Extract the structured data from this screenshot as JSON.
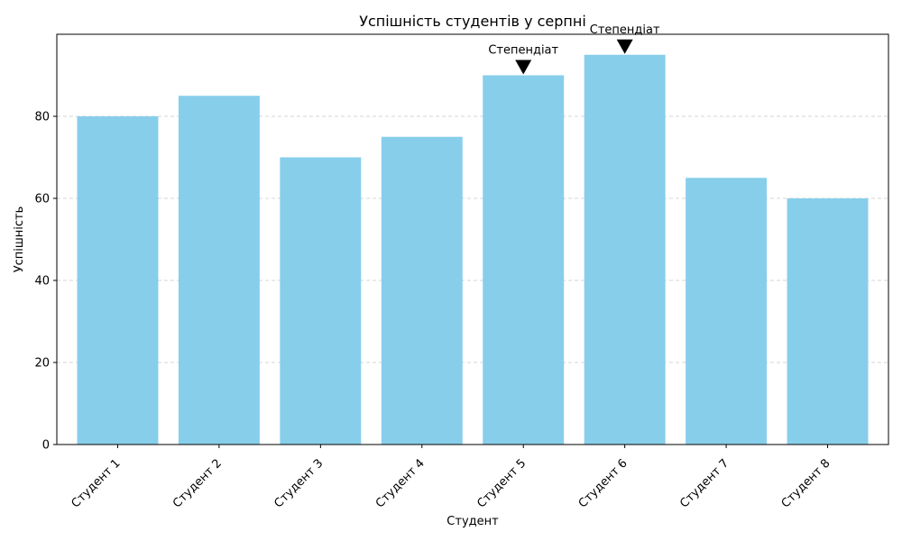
{
  "chart_data": {
    "type": "bar",
    "title": "Успішність студентів у серпні",
    "xlabel": "Студент",
    "ylabel": "Успішність",
    "categories": [
      "Студент 1",
      "Студент 2",
      "Студент 3",
      "Студент 4",
      "Студент 5",
      "Студент 6",
      "Студент 7",
      "Студент 8"
    ],
    "values": [
      80,
      85,
      70,
      75,
      90,
      95,
      65,
      60
    ],
    "ylim": [
      0,
      100
    ],
    "yticks": [
      0,
      20,
      40,
      60,
      80
    ],
    "grid": "y-dashed",
    "bar_color": "#87ceeb",
    "annotations": [
      {
        "category": "Студент 5",
        "value": 90,
        "text": "Степендіат"
      },
      {
        "category": "Студент 6",
        "value": 95,
        "text": "Степендіат"
      }
    ]
  }
}
